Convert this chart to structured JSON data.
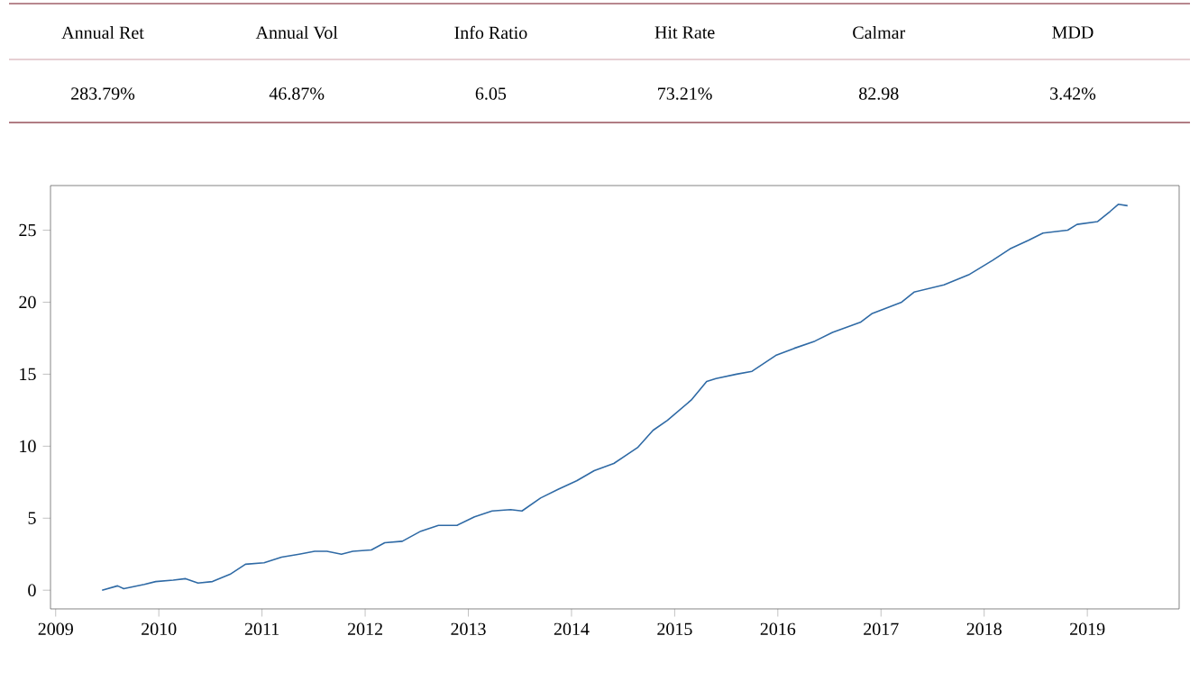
{
  "chart_data": [
    {
      "type": "other",
      "categories": [
        "Annual Ret",
        "Annual Vol",
        "Info Ratio",
        "Hit Rate",
        "Calmar",
        "MDD"
      ],
      "value_labels": [
        "283.79%",
        "46.87%",
        "6.05",
        "73.21%",
        "82.98",
        "3.42%"
      ]
    },
    {
      "type": "line",
      "xlim": [
        2008.95,
        2019.89
      ],
      "ylim": [
        -1.3,
        28.1
      ],
      "xticks": [
        2009,
        2010,
        2011,
        2012,
        2013,
        2014,
        2015,
        2016,
        2017,
        2018,
        2019
      ],
      "yticks": [
        0,
        5,
        10,
        15,
        20,
        25
      ],
      "marker": "none",
      "line_style": "solid",
      "series": [
        {
          "color": "#2f6aa5",
          "x": [
            2009.45,
            2009.6,
            2009.66,
            2009.86,
            2009.97,
            2010.14,
            2010.26,
            2010.38,
            2010.52,
            2010.69,
            2010.84,
            2011.02,
            2011.19,
            2011.36,
            2011.51,
            2011.63,
            2011.77,
            2011.88,
            2012.06,
            2012.19,
            2012.36,
            2012.54,
            2012.71,
            2012.89,
            2013.06,
            2013.23,
            2013.41,
            2013.52,
            2013.7,
            2013.87,
            2014.05,
            2014.22,
            2014.41,
            2014.64,
            2014.79,
            2014.93,
            2015.16,
            2015.31,
            2015.4,
            2015.6,
            2015.75,
            2015.98,
            2016.16,
            2016.36,
            2016.53,
            2016.8,
            2016.91,
            2017.2,
            2017.32,
            2017.61,
            2017.85,
            2018.08,
            2018.25,
            2018.43,
            2018.57,
            2018.81,
            2018.9,
            2019.1,
            2019.22,
            2019.3,
            2019.39
          ],
          "values": [
            0,
            0.3,
            0.1,
            0.4,
            0.6,
            0.7,
            0.8,
            0.5,
            0.6,
            1.1,
            1.8,
            1.9,
            2.3,
            2.5,
            2.7,
            2.7,
            2.5,
            2.7,
            2.8,
            3.3,
            3.4,
            4.1,
            4.5,
            4.5,
            5.1,
            5.5,
            5.6,
            5.5,
            6.4,
            7.0,
            7.6,
            8.3,
            8.8,
            9.9,
            11.1,
            11.8,
            13.2,
            14.5,
            14.7,
            15.0,
            15.2,
            16.3,
            16.8,
            17.3,
            17.9,
            18.6,
            19.2,
            20.0,
            20.7,
            21.2,
            21.9,
            22.9,
            23.7,
            24.3,
            24.8,
            25.0,
            25.4,
            25.6,
            26.3,
            26.8,
            26.7
          ]
        }
      ]
    }
  ]
}
